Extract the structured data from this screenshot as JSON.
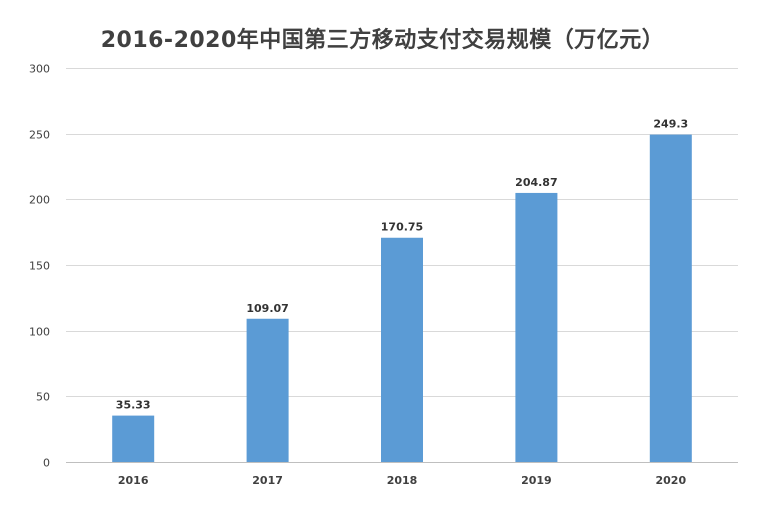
{
  "chart_data": {
    "type": "bar",
    "title": "2016-2020年中国第三方移动支付交易规模（万亿元）",
    "categories": [
      "2016",
      "2017",
      "2018",
      "2019",
      "2020"
    ],
    "values": [
      35.33,
      109.07,
      170.75,
      204.87,
      249.3
    ],
    "data_labels": [
      "35.33",
      "109.07",
      "170.75",
      "204.87",
      "249.3"
    ],
    "ylim": [
      0,
      300
    ],
    "yticks": [
      0,
      50,
      100,
      150,
      200,
      250,
      300
    ],
    "ytick_labels": [
      "0",
      "50",
      "100",
      "150",
      "200",
      "250",
      "300"
    ],
    "xlabel": "",
    "ylabel": "",
    "grid": true,
    "legend": "none",
    "bar_color": "#5b9bd5"
  }
}
